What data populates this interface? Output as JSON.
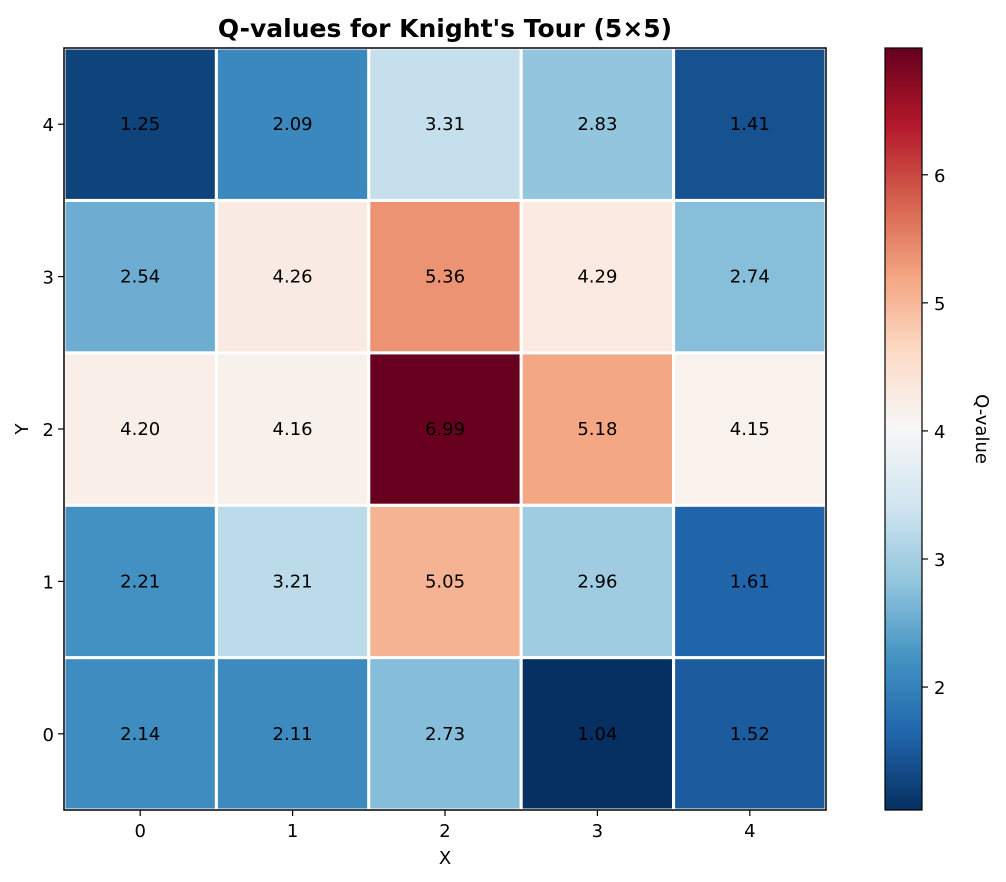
{
  "chart_data": {
    "type": "heatmap",
    "title": "Q-values for Knight's Tour (5×5)",
    "xlabel": "X",
    "ylabel": "Y",
    "x_ticks": [
      "0",
      "1",
      "2",
      "3",
      "4"
    ],
    "y_ticks": [
      "0",
      "1",
      "2",
      "3",
      "4"
    ],
    "values": [
      [
        2.14,
        2.11,
        2.73,
        1.04,
        1.52
      ],
      [
        2.21,
        3.21,
        5.05,
        2.96,
        1.61
      ],
      [
        4.2,
        4.16,
        6.99,
        5.18,
        4.15
      ],
      [
        2.54,
        4.26,
        5.36,
        4.29,
        2.74
      ],
      [
        1.25,
        2.09,
        3.31,
        2.83,
        1.41
      ]
    ],
    "value_labels": [
      [
        "2.14",
        "2.11",
        "2.73",
        "1.04",
        "1.52"
      ],
      [
        "2.21",
        "3.21",
        "5.05",
        "2.96",
        "1.61"
      ],
      [
        "4.20",
        "4.16",
        "6.99",
        "5.18",
        "4.15"
      ],
      [
        "2.54",
        "4.26",
        "5.36",
        "4.29",
        "2.74"
      ],
      [
        "1.25",
        "2.09",
        "3.31",
        "2.83",
        "1.41"
      ]
    ],
    "colormap": "RdBu_r",
    "vmin": 1.04,
    "vmax": 6.99,
    "colorbar": {
      "label": "Q-value",
      "ticks": [
        2,
        3,
        4,
        5,
        6
      ],
      "tick_labels": [
        "2",
        "3",
        "4",
        "5",
        "6"
      ]
    },
    "cell_border_color": "#ffffff"
  }
}
